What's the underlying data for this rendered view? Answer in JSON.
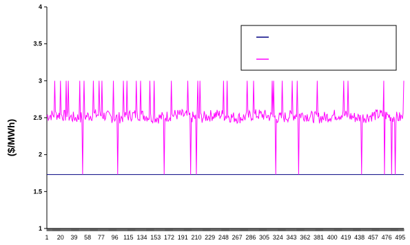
{
  "chart_data": {
    "type": "line",
    "title": "",
    "xlabel": "",
    "ylabel": "($/MWh)",
    "xlim": [
      1,
      500
    ],
    "ylim": [
      1,
      4
    ],
    "y_ticks": [
      "1",
      "1.5",
      "2",
      "2.5",
      "3",
      "3.5",
      "4"
    ],
    "y_tick_values": [
      1,
      1.5,
      2,
      2.5,
      3,
      3.5,
      4
    ],
    "x_ticks": [
      "1",
      "20",
      "39",
      "58",
      "77",
      "96",
      "115",
      "134",
      "153",
      "172",
      "191",
      "210",
      "229",
      "248",
      "267",
      "286",
      "305",
      "324",
      "343",
      "362",
      "381",
      "400",
      "419",
      "438",
      "457",
      "476",
      "495"
    ],
    "x_tick_values": [
      1,
      20,
      39,
      58,
      77,
      96,
      115,
      134,
      153,
      172,
      191,
      210,
      229,
      248,
      267,
      286,
      305,
      324,
      343,
      362,
      381,
      400,
      419,
      438,
      457,
      476,
      495
    ],
    "grid": false,
    "legend": {
      "placement": "top-right",
      "entries": [
        "",
        ""
      ]
    },
    "series": [
      {
        "color": "#000080",
        "style": "flat",
        "value": 1.73
      },
      {
        "color": "#ff00ff",
        "base": 2.52,
        "amplitude": 0.08,
        "spikes_high": [
          12,
          20,
          28,
          31,
          47,
          53,
          66,
          74,
          78,
          94,
          108,
          113,
          126,
          132,
          145,
          151,
          175,
          198,
          212,
          215,
          248,
          253,
          281,
          290,
          316,
          318,
          330,
          344,
          351,
          379,
          416,
          422,
          472,
          500
        ],
        "high_value": 3.0,
        "spikes_low": [
          51,
          100,
          165,
          202,
          210,
          212,
          248,
          321,
          353,
          441,
          473,
          483,
          488
        ],
        "low_value": 1.73
      }
    ]
  }
}
